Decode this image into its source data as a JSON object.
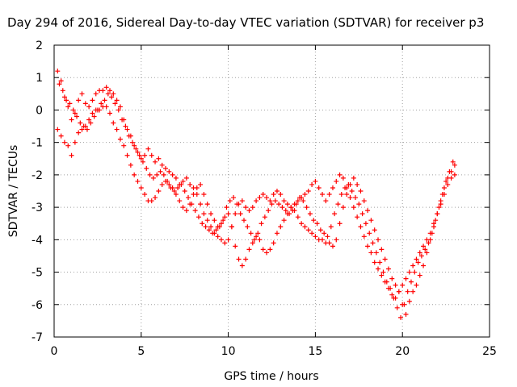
{
  "chart_data": {
    "type": "scatter",
    "title": "Day 294 of 2016, Sidereal Day-to-day VTEC variation (SDTVAR) for receiver p3",
    "xlabel": "GPS time / hours",
    "ylabel": "SDTVAR / TECUs",
    "xlim": [
      0,
      25
    ],
    "ylim": [
      -7,
      2
    ],
    "xticks": [
      "0",
      "5",
      "10",
      "15",
      "20",
      "25"
    ],
    "yticks": [
      "2",
      "1",
      "0",
      "-1",
      "-2",
      "-3",
      "-4",
      "-5",
      "-6",
      "-7"
    ],
    "grid": true,
    "marker": "+",
    "color": "#ff0000",
    "series": [
      {
        "x": [
          0.2,
          0.4,
          0.6,
          0.8,
          1.0,
          1.2,
          1.4,
          1.6,
          1.8,
          2.0,
          2.2,
          2.4,
          2.6,
          2.8,
          3.0,
          3.2,
          3.4,
          3.6,
          3.8,
          4.0,
          4.2,
          4.4,
          4.6,
          4.8,
          5.0,
          5.2,
          5.4,
          5.6,
          5.8,
          6.0,
          6.2,
          6.4,
          6.6,
          6.8,
          7.0,
          7.2,
          7.4,
          7.6,
          7.8,
          8.0,
          8.2,
          8.4,
          8.6,
          8.8,
          9.0,
          9.2,
          9.4,
          9.6,
          9.8,
          10.0,
          10.2,
          10.4,
          10.6,
          10.8,
          11.0,
          11.2,
          11.4,
          11.6,
          11.8,
          12.0,
          12.2,
          12.4,
          12.6,
          12.8,
          13.0,
          13.2,
          13.4,
          13.6,
          13.8,
          14.0,
          14.2,
          14.4,
          14.6,
          14.8,
          15.0,
          15.2,
          15.4,
          15.6,
          15.8,
          16.0,
          16.2,
          16.4,
          16.6,
          16.8,
          17.0,
          17.2,
          17.4,
          17.6,
          17.8,
          18.0,
          18.2,
          18.4,
          18.6,
          18.8,
          19.0,
          19.2,
          19.4,
          19.6,
          19.8,
          20.0,
          20.2,
          20.4,
          20.6,
          20.8,
          21.0,
          21.2,
          21.4,
          21.6,
          21.8,
          22.0,
          22.2,
          22.4,
          22.6,
          22.8,
          23.0
        ],
        "y": [
          1.2,
          0.9,
          0.4,
          0.1,
          -0.3,
          -0.1,
          0.3,
          0.5,
          0.2,
          0.1,
          0.3,
          0.5,
          0.6,
          0.6,
          0.7,
          0.6,
          0.5,
          0.3,
          0.1,
          -0.3,
          -0.6,
          -0.8,
          -1.1,
          -1.3,
          -1.5,
          -1.4,
          -1.2,
          -1.4,
          -1.6,
          -1.5,
          -1.7,
          -1.8,
          -1.9,
          -2.0,
          -2.1,
          -2.3,
          -2.2,
          -2.1,
          -2.3,
          -2.4,
          -2.6,
          -2.9,
          -3.2,
          -3.4,
          -3.6,
          -3.8,
          -3.9,
          -4.0,
          -4.1,
          -4.0,
          -3.6,
          -3.2,
          -2.9,
          -2.8,
          -3.0,
          -3.1,
          -3.0,
          -2.8,
          -2.7,
          -2.6,
          -2.7,
          -2.8,
          -2.6,
          -2.5,
          -2.6,
          -2.8,
          -2.9,
          -3.0,
          -3.1,
          -3.3,
          -3.5,
          -3.6,
          -3.7,
          -3.8,
          -3.9,
          -4.0,
          -4.0,
          -4.1,
          -4.1,
          -4.2,
          -4.0,
          -3.5,
          -3.0,
          -2.6,
          -2.3,
          -2.1,
          -2.3,
          -2.5,
          -2.8,
          -3.1,
          -3.4,
          -3.7,
          -4.0,
          -4.3,
          -4.6,
          -4.9,
          -5.2,
          -5.4,
          -5.6,
          -6.0,
          -6.3,
          -5.9,
          -5.6,
          -5.4,
          -5.1,
          -4.8,
          -4.4,
          -4.0,
          -3.6,
          -3.2,
          -2.8,
          -2.4,
          -2.1,
          -1.9,
          -1.7
        ]
      },
      {
        "x": [
          0.2,
          0.4,
          0.6,
          0.8,
          1.0,
          1.2,
          1.4,
          1.6,
          1.8,
          2.0,
          2.2,
          2.4,
          2.6,
          2.8,
          3.0,
          3.2,
          3.4,
          3.6,
          3.8,
          4.0,
          4.2,
          4.4,
          4.6,
          4.8,
          5.0,
          5.2,
          5.4,
          5.6,
          5.8,
          6.0,
          6.2,
          6.4,
          6.6,
          6.8,
          7.0,
          7.2,
          7.4,
          7.6,
          7.8,
          8.0,
          8.2,
          8.4,
          8.6,
          8.8,
          9.0,
          9.2,
          9.4,
          9.6,
          9.8,
          10.0,
          10.2,
          10.4,
          10.6,
          10.8,
          11.0,
          11.2,
          11.4,
          11.6,
          11.8,
          12.0,
          12.2,
          12.4,
          12.6,
          12.8,
          13.0,
          13.2,
          13.4,
          13.6,
          13.8,
          14.0,
          14.2,
          14.4,
          14.6,
          14.8,
          15.0,
          15.2,
          15.4,
          15.6,
          15.8,
          16.0,
          16.2,
          16.4,
          16.6,
          16.8,
          17.0,
          17.2,
          17.4,
          17.6,
          17.8,
          18.0,
          18.2,
          18.4,
          18.6,
          18.8,
          19.0,
          19.2,
          19.4,
          19.6,
          19.8,
          20.0,
          20.2,
          20.4,
          20.6,
          20.8,
          21.0,
          21.2,
          21.4,
          21.6,
          21.8,
          22.0,
          22.2,
          22.4,
          22.6,
          22.8,
          23.0
        ],
        "y": [
          -0.6,
          -0.8,
          -1.0,
          -1.1,
          -1.4,
          -1.0,
          -0.7,
          -0.6,
          -0.5,
          -0.3,
          -0.1,
          0.0,
          0.0,
          0.1,
          0.1,
          -0.1,
          -0.4,
          -0.6,
          -0.9,
          -1.1,
          -1.4,
          -1.7,
          -2.0,
          -2.2,
          -2.4,
          -2.6,
          -2.8,
          -2.8,
          -2.7,
          -2.5,
          -2.3,
          -2.2,
          -2.3,
          -2.4,
          -2.6,
          -2.8,
          -3.0,
          -3.1,
          -2.9,
          -2.6,
          -2.4,
          -2.3,
          -2.6,
          -2.9,
          -3.2,
          -3.4,
          -3.6,
          -3.5,
          -3.3,
          -3.2,
          -3.6,
          -4.2,
          -4.6,
          -4.8,
          -4.6,
          -4.3,
          -4.1,
          -3.9,
          -4.0,
          -4.3,
          -4.4,
          -4.3,
          -4.1,
          -3.8,
          -3.6,
          -3.4,
          -3.2,
          -3.0,
          -2.9,
          -2.8,
          -2.7,
          -2.6,
          -2.5,
          -2.3,
          -2.2,
          -2.4,
          -2.6,
          -2.8,
          -2.6,
          -2.4,
          -2.2,
          -2.0,
          -2.1,
          -2.4,
          -2.7,
          -3.0,
          -3.3,
          -3.6,
          -3.9,
          -4.2,
          -4.4,
          -4.7,
          -4.9,
          -5.1,
          -5.3,
          -5.5,
          -5.7,
          -5.8,
          -5.6,
          -5.4,
          -5.2,
          -5.0,
          -4.8,
          -4.6,
          -4.4,
          -4.2,
          -4.0,
          -3.8,
          -3.5,
          -3.2,
          -2.9,
          -2.6,
          -2.3,
          -2.1,
          -2.0
        ]
      },
      {
        "x": [
          0.3,
          0.5,
          0.7,
          0.9,
          1.1,
          1.3,
          1.5,
          1.7,
          1.9,
          2.1,
          2.3,
          2.5,
          2.7,
          2.9,
          3.1,
          3.3,
          3.5,
          3.7,
          3.9,
          4.1,
          4.3,
          4.5,
          4.7,
          4.9,
          5.1,
          5.3,
          5.5,
          5.7,
          5.9,
          6.1,
          6.3,
          6.5,
          6.7,
          6.9,
          7.1,
          7.3,
          7.5,
          7.7,
          7.9,
          8.1,
          8.3,
          8.5,
          8.7,
          8.9,
          9.1,
          9.3,
          9.5,
          9.7,
          9.9,
          10.1,
          10.3,
          10.5,
          10.7,
          10.9,
          11.1,
          11.3,
          11.5,
          11.7,
          11.9,
          12.1,
          12.3,
          12.5,
          12.7,
          12.9,
          13.1,
          13.3,
          13.5,
          13.7,
          13.9,
          14.1,
          14.3,
          14.5,
          14.7,
          14.9,
          15.1,
          15.3,
          15.5,
          15.7,
          15.9,
          16.1,
          16.3,
          16.5,
          16.7,
          16.9,
          17.1,
          17.3,
          17.5,
          17.7,
          17.9,
          18.1,
          18.3,
          18.5,
          18.7,
          18.9,
          19.1,
          19.3,
          19.5,
          19.7,
          19.9,
          20.1,
          20.3,
          20.5,
          20.7,
          20.9,
          21.1,
          21.3,
          21.5,
          21.7,
          21.9,
          22.1,
          22.3,
          22.5,
          22.7,
          22.9
        ],
        "y": [
          0.8,
          0.6,
          0.3,
          0.2,
          0.0,
          -0.2,
          -0.4,
          -0.5,
          -0.6,
          -0.4,
          -0.2,
          0.0,
          0.2,
          0.3,
          0.5,
          0.4,
          0.2,
          0.0,
          -0.3,
          -0.5,
          -0.8,
          -1.0,
          -1.2,
          -1.4,
          -1.6,
          -1.8,
          -2.0,
          -2.1,
          -2.0,
          -1.9,
          -2.0,
          -2.2,
          -2.4,
          -2.5,
          -2.4,
          -2.3,
          -2.5,
          -2.7,
          -2.9,
          -3.1,
          -3.3,
          -3.5,
          -3.6,
          -3.7,
          -3.8,
          -3.7,
          -3.6,
          -3.4,
          -3.0,
          -2.8,
          -2.7,
          -2.9,
          -3.2,
          -3.4,
          -3.6,
          -3.8,
          -4.0,
          -3.8,
          -3.5,
          -3.3,
          -3.1,
          -2.9,
          -2.8,
          -2.9,
          -3.0,
          -3.1,
          -3.2,
          -3.1,
          -2.9,
          -2.7,
          -2.8,
          -3.0,
          -3.2,
          -3.4,
          -3.5,
          -3.7,
          -3.8,
          -3.9,
          -3.6,
          -3.2,
          -2.9,
          -2.6,
          -2.4,
          -2.3,
          -2.5,
          -2.7,
          -2.9,
          -3.2,
          -3.5,
          -3.8,
          -4.1,
          -4.4,
          -4.7,
          -5.0,
          -5.3,
          -5.5,
          -5.8,
          -6.1,
          -6.4,
          -6.0,
          -5.6,
          -5.3,
          -5.0,
          -4.7,
          -4.5,
          -4.3,
          -4.1,
          -3.8,
          -3.4,
          -3.0,
          -2.6,
          -2.2,
          -1.9,
          -1.6
        ]
      }
    ]
  }
}
